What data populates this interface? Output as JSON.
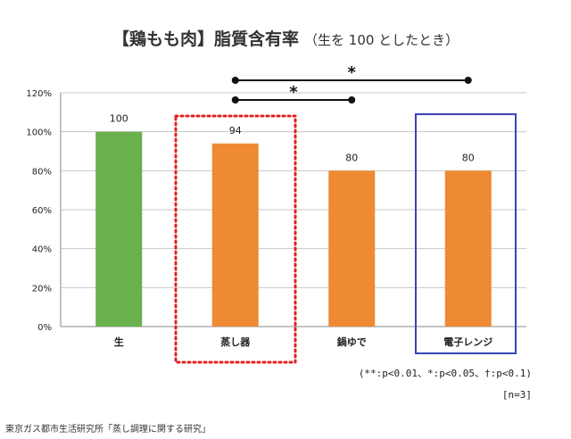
{
  "colors": {
    "raw": "#6ab04c",
    "orange": "#ee8a33",
    "grid": "#c8c8c8",
    "red_dotted": "#e02020",
    "blue_box": "#3a44b5"
  },
  "header": {
    "title": "【鶏もも肉】脂質含有率",
    "subtitle": "（生を 100 としたとき）"
  },
  "chart_data": {
    "type": "bar",
    "title": "【鶏もも肉】脂質含有率",
    "subtitle": "（生を 100 としたとき）",
    "categories": [
      "生",
      "蒸し器",
      "鍋ゆで",
      "電子レンジ"
    ],
    "values": [
      100,
      94,
      80,
      80
    ],
    "value_labels": [
      "100",
      "94",
      "80",
      "80"
    ],
    "bar_colors": [
      "#6ab04c",
      "#ee8a33",
      "#ee8a33",
      "#ee8a33"
    ],
    "ylim": [
      0,
      120
    ],
    "yticks": [
      "0%",
      "20%",
      "40%",
      "60%",
      "80%",
      "100%",
      "120%"
    ],
    "grid": true,
    "significance": [
      {
        "from": 1,
        "to": 3,
        "mark": "*"
      },
      {
        "from": 1,
        "to": 2,
        "mark": "*"
      }
    ]
  },
  "footnote": {
    "significance_note": "(**:p<0.01、*:p<0.05、†:p<0.1)",
    "sample_size": "[n=3]"
  },
  "source": "東京ガス都市生活研究所「蒸し調理に関する研究」"
}
